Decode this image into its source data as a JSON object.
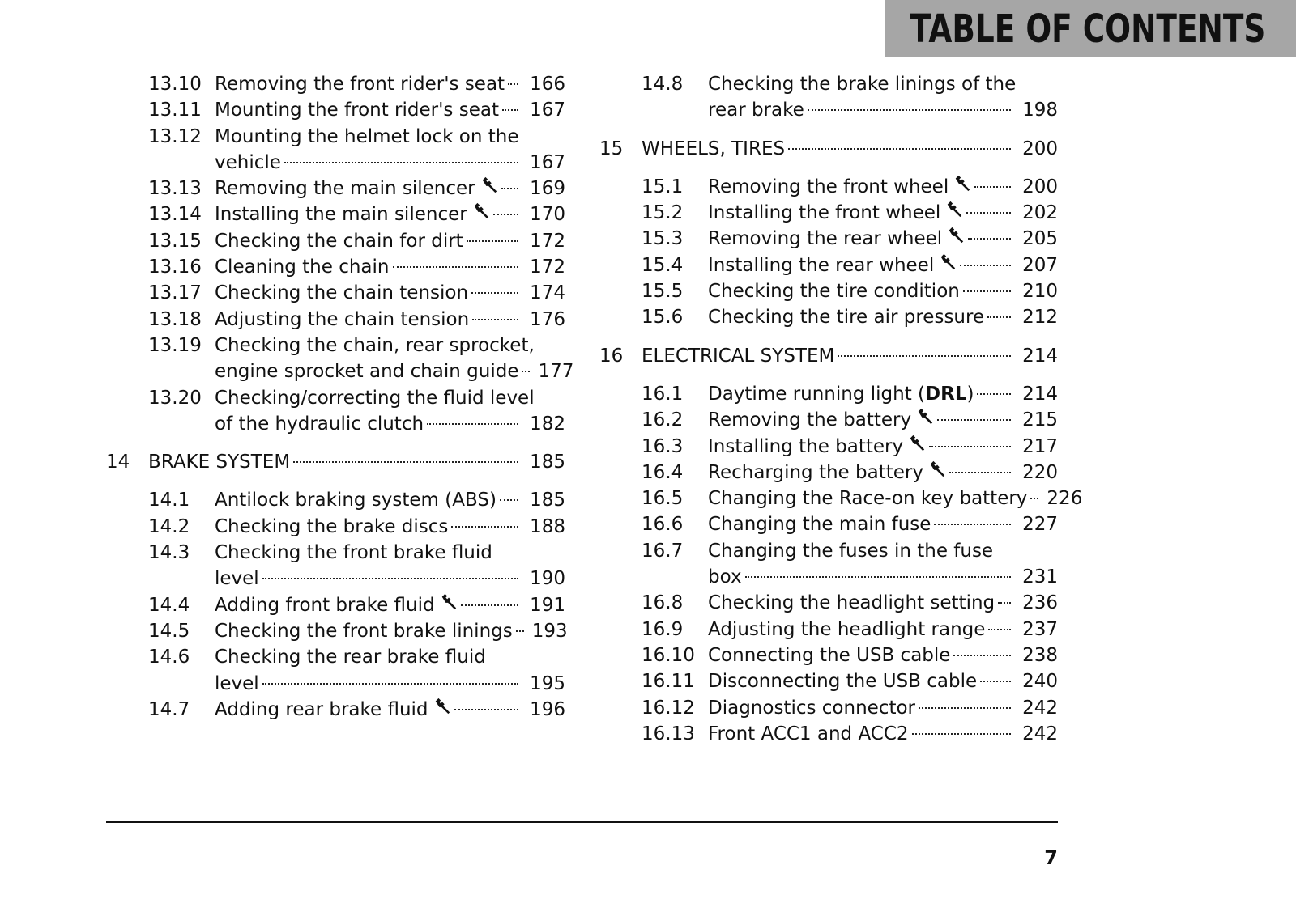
{
  "header": {
    "title": "TABLE OF CONTENTS"
  },
  "columns": [
    {
      "entries": [
        {
          "level": "section",
          "num": "13.10",
          "title": [
            "Removing the front rider's seat"
          ],
          "page": "166"
        },
        {
          "level": "section",
          "num": "13.11",
          "title": [
            "Mounting the front rider's seat"
          ],
          "page": "167"
        },
        {
          "level": "section",
          "num": "13.12",
          "title": [
            "Mounting the helmet lock on the",
            "vehicle"
          ],
          "page": "167"
        },
        {
          "level": "section",
          "num": "13.13",
          "title": [
            "Removing the main silencer"
          ],
          "tool": true,
          "page": "169"
        },
        {
          "level": "section",
          "num": "13.14",
          "title": [
            "Installing the main silencer"
          ],
          "tool": true,
          "page": "170"
        },
        {
          "level": "section",
          "num": "13.15",
          "title": [
            "Checking the chain for dirt"
          ],
          "page": "172"
        },
        {
          "level": "section",
          "num": "13.16",
          "title": [
            "Cleaning the chain"
          ],
          "page": "172"
        },
        {
          "level": "section",
          "num": "13.17",
          "title": [
            "Checking the chain tension"
          ],
          "page": "174"
        },
        {
          "level": "section",
          "num": "13.18",
          "title": [
            "Adjusting the chain tension"
          ],
          "page": "176"
        },
        {
          "level": "section",
          "num": "13.19",
          "title": [
            "Checking the chain, rear sprocket,",
            "engine sprocket and chain guide"
          ],
          "page": "177"
        },
        {
          "level": "section",
          "num": "13.20",
          "title": [
            "Checking/correcting the fluid level",
            "of the hydraulic clutch"
          ],
          "page": "182"
        },
        {
          "level": "chapter",
          "num": "14",
          "title": [
            "BRAKE SYSTEM"
          ],
          "page": "185"
        },
        {
          "level": "section",
          "num": "14.1",
          "title": [
            "Antilock braking system (ABS)"
          ],
          "page": "185"
        },
        {
          "level": "section",
          "num": "14.2",
          "title": [
            "Checking the brake discs"
          ],
          "page": "188"
        },
        {
          "level": "section",
          "num": "14.3",
          "title": [
            "Checking the front brake fluid",
            "level"
          ],
          "page": "190"
        },
        {
          "level": "section",
          "num": "14.4",
          "title": [
            "Adding front brake fluid"
          ],
          "tool": true,
          "page": "191"
        },
        {
          "level": "section",
          "num": "14.5",
          "title": [
            "Checking the front brake linings"
          ],
          "page": "193"
        },
        {
          "level": "section",
          "num": "14.6",
          "title": [
            "Checking the rear brake fluid",
            "level"
          ],
          "page": "195"
        },
        {
          "level": "section",
          "num": "14.7",
          "title": [
            "Adding rear brake fluid"
          ],
          "tool": true,
          "page": "196"
        }
      ]
    },
    {
      "entries": [
        {
          "level": "section",
          "num": "14.8",
          "title": [
            "Checking the brake linings of the",
            "rear brake"
          ],
          "page": "198"
        },
        {
          "level": "chapter",
          "num": "15",
          "title": [
            "WHEELS, TIRES"
          ],
          "page": "200"
        },
        {
          "level": "section",
          "num": "15.1",
          "title": [
            "Removing the front wheel"
          ],
          "tool": true,
          "page": "200"
        },
        {
          "level": "section",
          "num": "15.2",
          "title": [
            "Installing the front wheel"
          ],
          "tool": true,
          "page": "202"
        },
        {
          "level": "section",
          "num": "15.3",
          "title": [
            "Removing the rear wheel"
          ],
          "tool": true,
          "page": "205"
        },
        {
          "level": "section",
          "num": "15.4",
          "title": [
            "Installing the rear wheel"
          ],
          "tool": true,
          "page": "207"
        },
        {
          "level": "section",
          "num": "15.5",
          "title": [
            "Checking the tire condition"
          ],
          "page": "210"
        },
        {
          "level": "section",
          "num": "15.6",
          "title": [
            "Checking the tire air pressure"
          ],
          "page": "212"
        },
        {
          "level": "chapter",
          "num": "16",
          "title": [
            "ELECTRICAL SYSTEM"
          ],
          "page": "214"
        },
        {
          "level": "section",
          "num": "16.1",
          "title": [
            [
              "Daytime running light (",
              {
                "bold": "DRL"
              },
              ")"
            ]
          ],
          "page": "214"
        },
        {
          "level": "section",
          "num": "16.2",
          "title": [
            "Removing the battery"
          ],
          "tool": true,
          "page": "215"
        },
        {
          "level": "section",
          "num": "16.3",
          "title": [
            "Installing the battery"
          ],
          "tool": true,
          "page": "217"
        },
        {
          "level": "section",
          "num": "16.4",
          "title": [
            "Recharging the battery"
          ],
          "tool": true,
          "page": "220"
        },
        {
          "level": "section",
          "num": "16.5",
          "title": [
            "Changing the Race-on key battery"
          ],
          "page": "226"
        },
        {
          "level": "section",
          "num": "16.6",
          "title": [
            "Changing the main fuse"
          ],
          "page": "227"
        },
        {
          "level": "section",
          "num": "16.7",
          "title": [
            "Changing the fuses in the fuse",
            "box"
          ],
          "page": "231"
        },
        {
          "level": "section",
          "num": "16.8",
          "title": [
            "Checking the headlight setting"
          ],
          "page": "236"
        },
        {
          "level": "section",
          "num": "16.9",
          "title": [
            "Adjusting the headlight range"
          ],
          "page": "237"
        },
        {
          "level": "section",
          "num": "16.10",
          "title": [
            "Connecting the USB cable"
          ],
          "page": "238"
        },
        {
          "level": "section",
          "num": "16.11",
          "title": [
            "Disconnecting the USB cable"
          ],
          "page": "240"
        },
        {
          "level": "section",
          "num": "16.12",
          "title": [
            "Diagnostics connector"
          ],
          "page": "242"
        },
        {
          "level": "section",
          "num": "16.13",
          "title": [
            "Front ACC1 and ACC2"
          ],
          "page": "242"
        }
      ]
    }
  ],
  "footer": {
    "page_number": "7"
  }
}
